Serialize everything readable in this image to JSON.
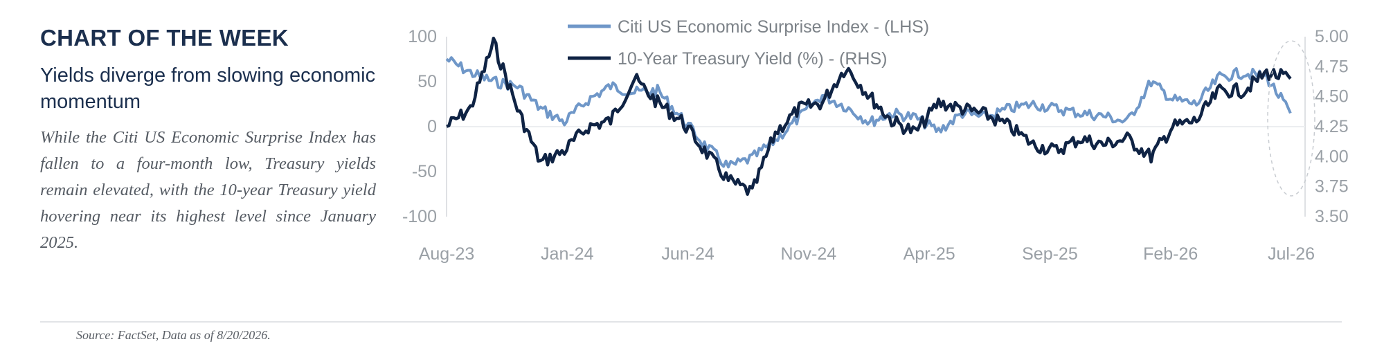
{
  "header": {
    "kicker": "CHART OF THE WEEK",
    "headline": "Yields diverge from slowing economic momentum",
    "body": "While the Citi US Economic Surprise Index has fallen to a four-month low, Treasury yields remain elevated, with the 10-year Treasury yield hovering near its highest level since January 2025."
  },
  "footer": {
    "source": "Source: FactSet, Data as of 8/20/2026."
  },
  "colors": {
    "surprise_line": "#6f97c8",
    "yield_line": "#0f2344",
    "heading": "#1b2f4e",
    "axis_text": "#9aa0a6"
  },
  "chart_data": {
    "type": "line",
    "x_tick_labels": [
      "Aug-23",
      "Jan-24",
      "Jun-24",
      "Nov-24",
      "Apr-25",
      "Sep-25",
      "Feb-26",
      "Jul-26"
    ],
    "y_left": {
      "ticks": [
        100,
        50,
        0,
        -50,
        -100
      ],
      "tick_labels": [
        "100",
        "50",
        "0",
        "-50",
        "-100"
      ],
      "range": [
        -100,
        100
      ]
    },
    "y_right": {
      "ticks": [
        5.0,
        4.75,
        4.5,
        4.25,
        4.0,
        3.75,
        3.5
      ],
      "tick_labels": [
        "5.00",
        "4.75",
        "4.50",
        "4.25",
        "4.00",
        "3.75",
        "3.50"
      ],
      "range": [
        3.5,
        5.0
      ]
    },
    "gridlines": false,
    "legend_position": "top-center",
    "annotation": "dashed ellipse highlighting latest values",
    "series": [
      {
        "name": "Citi US Economic Surprise Index - (LHS)",
        "axis": "left",
        "color": "#6f97c8",
        "x": [
          "2023-08-01",
          "2023-09-01",
          "2023-10-01",
          "2023-11-01",
          "2023-12-01",
          "2024-01-01",
          "2024-02-01",
          "2024-03-01",
          "2024-04-01",
          "2024-05-01",
          "2024-06-01",
          "2024-07-01",
          "2024-08-01",
          "2024-09-01",
          "2024-10-01",
          "2024-11-01",
          "2024-12-01",
          "2025-01-01",
          "2025-02-01",
          "2025-03-01",
          "2025-04-01",
          "2025-05-01",
          "2025-06-01",
          "2025-07-01",
          "2025-08-01",
          "2025-09-01",
          "2025-10-01",
          "2025-11-01",
          "2025-12-01",
          "2026-01-01",
          "2026-02-01",
          "2026-03-01",
          "2026-04-01",
          "2026-05-01",
          "2026-06-01",
          "2026-07-01",
          "2026-08-01"
        ],
        "values": [
          75,
          60,
          50,
          45,
          20,
          5,
          30,
          45,
          38,
          40,
          10,
          -20,
          -45,
          -35,
          -15,
          10,
          35,
          22,
          5,
          15,
          10,
          -5,
          15,
          10,
          20,
          25,
          20,
          15,
          12,
          5,
          50,
          30,
          25,
          55,
          60,
          55,
          15
        ]
      },
      {
        "name": "10-Year Treasury Yield (%) - (RHS)",
        "axis": "right",
        "color": "#0f2344",
        "x": [
          "2023-08-01",
          "2023-09-01",
          "2023-10-01",
          "2023-11-01",
          "2023-12-01",
          "2024-01-01",
          "2024-02-01",
          "2024-03-01",
          "2024-04-01",
          "2024-05-01",
          "2024-06-01",
          "2024-07-01",
          "2024-08-01",
          "2024-09-01",
          "2024-10-01",
          "2024-11-01",
          "2024-12-01",
          "2025-01-01",
          "2025-02-01",
          "2025-03-01",
          "2025-04-01",
          "2025-05-01",
          "2025-06-01",
          "2025-07-01",
          "2025-08-01",
          "2025-09-01",
          "2025-10-01",
          "2025-11-01",
          "2025-12-01",
          "2026-01-01",
          "2026-02-01",
          "2026-03-01",
          "2026-04-01",
          "2026-05-01",
          "2026-06-01",
          "2026-07-01",
          "2026-08-01"
        ],
        "values": [
          4.25,
          4.4,
          4.95,
          4.4,
          3.95,
          4.05,
          4.25,
          4.3,
          4.65,
          4.45,
          4.3,
          4.05,
          3.8,
          3.7,
          4.2,
          4.4,
          4.45,
          4.75,
          4.5,
          4.3,
          4.2,
          4.45,
          4.4,
          4.35,
          4.25,
          4.1,
          4.05,
          4.15,
          4.1,
          4.15,
          4.0,
          4.25,
          4.3,
          4.55,
          4.55,
          4.7,
          4.65
        ]
      }
    ]
  }
}
